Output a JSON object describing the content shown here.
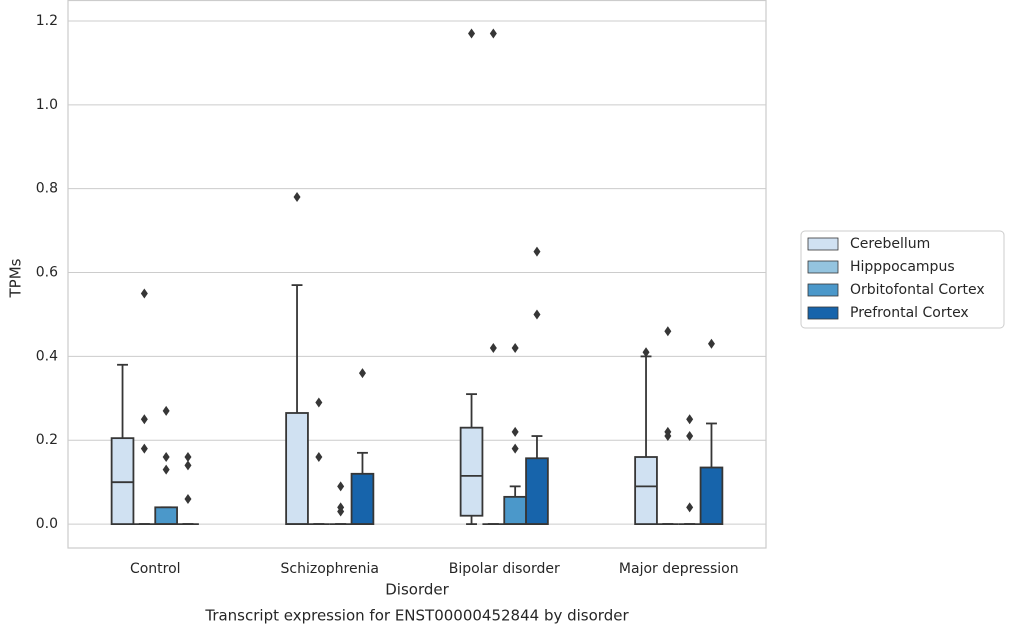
{
  "chart_data": {
    "type": "box",
    "title": "Transcript expression for ENST00000452844 by disorder",
    "x_label": "Disorder",
    "y_label": "TPMs",
    "categories": [
      "Control",
      "Schizophrenia",
      "Bipolar disorder",
      "Major depression"
    ],
    "ylim": [
      -0.057,
      1.25
    ],
    "yticks": [
      {
        "value": 0,
        "label": "0.0"
      },
      0.2,
      0.4,
      0.6,
      0.8,
      {
        "value": 1,
        "label": "1.0"
      },
      1.2
    ],
    "grid": true,
    "legend": "right",
    "series": [
      {
        "name": "Cerebellum",
        "color": "#d0e1f2",
        "values": [
          {
            "whislo": 0,
            "q1": 0,
            "med": 0.1,
            "q3": 0.205,
            "whishi": 0.38,
            "fliers": []
          },
          {
            "whislo": 0,
            "q1": 0,
            "med": 0,
            "q3": 0.265,
            "whishi": 0.57,
            "fliers": [
              0.78
            ]
          },
          {
            "whislo": 0,
            "q1": 0.02,
            "med": 0.115,
            "q3": 0.23,
            "whishi": 0.31,
            "fliers": [
              1.17
            ]
          },
          {
            "whislo": 0,
            "q1": 0,
            "med": 0.09,
            "q3": 0.16,
            "whishi": 0.4,
            "fliers": [
              0.41
            ]
          }
        ]
      },
      {
        "name": "Hipppocampus",
        "color": "#94c4df",
        "values": [
          {
            "whislo": 0,
            "q1": 0,
            "med": 0,
            "q3": 0,
            "whishi": 0,
            "fliers": [
              0.55,
              0.25,
              0.18
            ]
          },
          {
            "whislo": 0,
            "q1": 0,
            "med": 0,
            "q3": 0,
            "whishi": 0,
            "fliers": [
              0.29,
              0.16
            ]
          },
          {
            "whislo": 0,
            "q1": 0,
            "med": 0,
            "q3": 0,
            "whishi": 0,
            "fliers": [
              1.17,
              0.42
            ]
          },
          {
            "whislo": 0,
            "q1": 0,
            "med": 0,
            "q3": 0,
            "whishi": 0,
            "fliers": [
              0.46,
              0.22,
              0.21
            ]
          }
        ]
      },
      {
        "name": "Orbitofontal Cortex",
        "color": "#4b98ca",
        "values": [
          {
            "whislo": 0,
            "q1": 0,
            "med": 0,
            "q3": 0.04,
            "whishi": 0.04,
            "fliers": [
              0.27,
              0.16,
              0.13
            ]
          },
          {
            "whislo": 0,
            "q1": 0,
            "med": 0,
            "q3": 0,
            "whishi": 0,
            "fliers": [
              0.09,
              0.04,
              0.03
            ]
          },
          {
            "whislo": 0,
            "q1": 0,
            "med": 0,
            "q3": 0.065,
            "whishi": 0.09,
            "fliers": [
              0.42,
              0.22,
              0.18
            ]
          },
          {
            "whislo": 0,
            "q1": 0,
            "med": 0,
            "q3": 0,
            "whishi": 0,
            "fliers": [
              0.25,
              0.21,
              0.04
            ]
          }
        ]
      },
      {
        "name": "Prefrontal Cortex",
        "color": "#1764ab",
        "values": [
          {
            "whislo": 0,
            "q1": 0,
            "med": 0,
            "q3": 0,
            "whishi": 0,
            "fliers": [
              0.16,
              0.14,
              0.06
            ]
          },
          {
            "whislo": 0,
            "q1": 0,
            "med": 0,
            "q3": 0.12,
            "whishi": 0.17,
            "fliers": [
              0.36
            ]
          },
          {
            "whislo": 0,
            "q1": 0,
            "med": 0,
            "q3": 0.157,
            "whishi": 0.21,
            "fliers": [
              0.65,
              0.5
            ]
          },
          {
            "whislo": 0,
            "q1": 0,
            "med": 0,
            "q3": 0.135,
            "whishi": 0.24,
            "fliers": [
              0.43
            ]
          }
        ]
      }
    ]
  }
}
